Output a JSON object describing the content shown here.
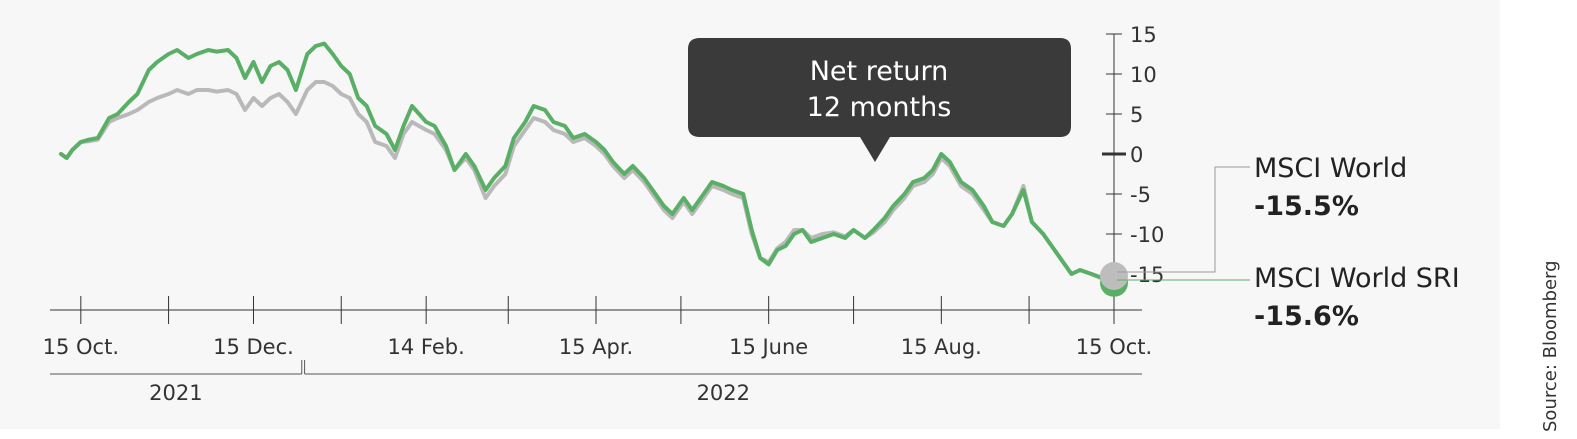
{
  "chart_data": {
    "type": "line",
    "tooltip": {
      "line1": "Net return",
      "line2": "12 months"
    },
    "source": "Source: Bloomberg",
    "ylim": [
      -15,
      15
    ],
    "y_ticks": [
      {
        "value": 15,
        "label": "15"
      },
      {
        "value": 10,
        "label": "10"
      },
      {
        "value": 5,
        "label": "5"
      },
      {
        "value": 0,
        "label": "0"
      },
      {
        "value": -5,
        "label": "-5"
      },
      {
        "value": -10,
        "label": "-10"
      },
      {
        "value": -15,
        "label": "-15"
      }
    ],
    "x_range": [
      "2021-10-08",
      "2022-10-15"
    ],
    "x_ticks": [
      "2021-10-15",
      "2021-11-15",
      "2021-12-15",
      "2022-01-15",
      "2022-02-14",
      "2022-03-15",
      "2022-04-15",
      "2022-05-15",
      "2022-06-15",
      "2022-07-15",
      "2022-08-15",
      "2022-09-15",
      "2022-10-15"
    ],
    "x_labels": [
      {
        "date": "2021-10-15",
        "label": "15 Oct."
      },
      {
        "date": "2021-12-15",
        "label": "15 Dec."
      },
      {
        "date": "2022-02-14",
        "label": "14 Feb."
      },
      {
        "date": "2022-04-15",
        "label": "15 Apr."
      },
      {
        "date": "2022-06-15",
        "label": "15 June"
      },
      {
        "date": "2022-08-15",
        "label": "15 Aug."
      },
      {
        "date": "2022-10-15",
        "label": "15 Oct."
      }
    ],
    "years": [
      {
        "label": "2021",
        "from": "2021-10-08",
        "to": "2021-12-31"
      },
      {
        "label": "2022",
        "from": "2022-01-01",
        "to": "2022-10-15"
      }
    ],
    "series": [
      {
        "name": "MSCI World",
        "value_label": "-15.5%",
        "color": "#5aaf66",
        "points": [
          [
            "2021-10-08",
            0.0
          ],
          [
            "2021-10-10",
            -0.5
          ],
          [
            "2021-10-12",
            0.5
          ],
          [
            "2021-10-15",
            1.5
          ],
          [
            "2021-10-18",
            1.8
          ],
          [
            "2021-10-21",
            2.0
          ],
          [
            "2021-10-25",
            4.5
          ],
          [
            "2021-10-28",
            5.0
          ],
          [
            "2021-11-01",
            6.5
          ],
          [
            "2021-11-04",
            7.5
          ],
          [
            "2021-11-08",
            10.5
          ],
          [
            "2021-11-11",
            11.5
          ],
          [
            "2021-11-15",
            12.5
          ],
          [
            "2021-11-18",
            13.0
          ],
          [
            "2021-11-22",
            12.0
          ],
          [
            "2021-11-25",
            12.5
          ],
          [
            "2021-11-29",
            13.0
          ],
          [
            "2021-12-02",
            12.8
          ],
          [
            "2021-12-06",
            13.0
          ],
          [
            "2021-12-09",
            12.0
          ],
          [
            "2021-12-12",
            9.5
          ],
          [
            "2021-12-15",
            11.5
          ],
          [
            "2021-12-18",
            9.0
          ],
          [
            "2021-12-21",
            11.0
          ],
          [
            "2021-12-24",
            11.5
          ],
          [
            "2021-12-27",
            10.5
          ],
          [
            "2021-12-30",
            8.0
          ],
          [
            "2022-01-03",
            12.5
          ],
          [
            "2022-01-06",
            13.5
          ],
          [
            "2022-01-09",
            13.8
          ],
          [
            "2022-01-12",
            12.5
          ],
          [
            "2022-01-15",
            11.0
          ],
          [
            "2022-01-18",
            10.0
          ],
          [
            "2022-01-21",
            7.0
          ],
          [
            "2022-01-24",
            6.0
          ],
          [
            "2022-01-27",
            3.5
          ],
          [
            "2022-01-31",
            2.5
          ],
          [
            "2022-02-03",
            0.5
          ],
          [
            "2022-02-06",
            3.5
          ],
          [
            "2022-02-09",
            6.0
          ],
          [
            "2022-02-14",
            4.0
          ],
          [
            "2022-02-17",
            3.5
          ],
          [
            "2022-02-21",
            1.0
          ],
          [
            "2022-02-24",
            -2.0
          ],
          [
            "2022-02-28",
            0.0
          ],
          [
            "2022-03-03",
            -1.5
          ],
          [
            "2022-03-07",
            -4.5
          ],
          [
            "2022-03-10",
            -3.0
          ],
          [
            "2022-03-14",
            -1.5
          ],
          [
            "2022-03-17",
            2.0
          ],
          [
            "2022-03-21",
            4.0
          ],
          [
            "2022-03-24",
            6.0
          ],
          [
            "2022-03-28",
            5.5
          ],
          [
            "2022-03-31",
            4.0
          ],
          [
            "2022-04-04",
            3.5
          ],
          [
            "2022-04-07",
            2.0
          ],
          [
            "2022-04-11",
            2.5
          ],
          [
            "2022-04-15",
            1.5
          ],
          [
            "2022-04-18",
            0.5
          ],
          [
            "2022-04-21",
            -1.0
          ],
          [
            "2022-04-25",
            -2.5
          ],
          [
            "2022-04-28",
            -1.5
          ],
          [
            "2022-05-02",
            -3.0
          ],
          [
            "2022-05-05",
            -4.5
          ],
          [
            "2022-05-09",
            -6.5
          ],
          [
            "2022-05-12",
            -7.5
          ],
          [
            "2022-05-16",
            -5.5
          ],
          [
            "2022-05-19",
            -7.0
          ],
          [
            "2022-05-23",
            -5.0
          ],
          [
            "2022-05-26",
            -3.5
          ],
          [
            "2022-05-30",
            -4.0
          ],
          [
            "2022-06-02",
            -4.5
          ],
          [
            "2022-06-06",
            -5.0
          ],
          [
            "2022-06-09",
            -9.5
          ],
          [
            "2022-06-12",
            -13.0
          ],
          [
            "2022-06-15",
            -13.8
          ],
          [
            "2022-06-18",
            -12.0
          ],
          [
            "2022-06-21",
            -11.5
          ],
          [
            "2022-06-24",
            -10.0
          ],
          [
            "2022-06-27",
            -9.5
          ],
          [
            "2022-06-30",
            -11.0
          ],
          [
            "2022-07-04",
            -10.5
          ],
          [
            "2022-07-08",
            -10.0
          ],
          [
            "2022-07-12",
            -10.5
          ],
          [
            "2022-07-15",
            -9.5
          ],
          [
            "2022-07-19",
            -10.5
          ],
          [
            "2022-07-22",
            -9.5
          ],
          [
            "2022-07-26",
            -8.0
          ],
          [
            "2022-07-29",
            -6.5
          ],
          [
            "2022-08-02",
            -5.0
          ],
          [
            "2022-08-05",
            -3.5
          ],
          [
            "2022-08-09",
            -3.0
          ],
          [
            "2022-08-12",
            -2.0
          ],
          [
            "2022-08-15",
            0.0
          ],
          [
            "2022-08-18",
            -1.0
          ],
          [
            "2022-08-22",
            -3.5
          ],
          [
            "2022-08-26",
            -4.5
          ],
          [
            "2022-08-30",
            -6.5
          ],
          [
            "2022-09-02",
            -8.5
          ],
          [
            "2022-09-06",
            -9.0
          ],
          [
            "2022-09-09",
            -7.5
          ],
          [
            "2022-09-13",
            -4.5
          ],
          [
            "2022-09-16",
            -8.5
          ],
          [
            "2022-09-20",
            -10.0
          ],
          [
            "2022-09-23",
            -11.5
          ],
          [
            "2022-09-27",
            -13.5
          ],
          [
            "2022-09-30",
            -15.0
          ],
          [
            "2022-10-03",
            -14.5
          ],
          [
            "2022-10-07",
            -15.0
          ],
          [
            "2022-10-11",
            -15.5
          ],
          [
            "2022-10-15",
            -15.5
          ]
        ]
      },
      {
        "name": "MSCI World SRI",
        "value_label": "-15.6%",
        "color": "#b9b9b9",
        "points": [
          [
            "2021-10-08",
            0.0
          ],
          [
            "2021-10-10",
            -0.5
          ],
          [
            "2021-10-12",
            0.5
          ],
          [
            "2021-10-15",
            1.5
          ],
          [
            "2021-10-18",
            1.6
          ],
          [
            "2021-10-21",
            1.8
          ],
          [
            "2021-10-25",
            4.0
          ],
          [
            "2021-10-28",
            4.5
          ],
          [
            "2021-11-01",
            5.0
          ],
          [
            "2021-11-04",
            5.5
          ],
          [
            "2021-11-08",
            6.5
          ],
          [
            "2021-11-11",
            7.0
          ],
          [
            "2021-11-15",
            7.5
          ],
          [
            "2021-11-18",
            8.0
          ],
          [
            "2021-11-22",
            7.5
          ],
          [
            "2021-11-25",
            8.0
          ],
          [
            "2021-11-29",
            8.0
          ],
          [
            "2021-12-02",
            7.8
          ],
          [
            "2021-12-06",
            8.0
          ],
          [
            "2021-12-09",
            7.5
          ],
          [
            "2021-12-12",
            5.5
          ],
          [
            "2021-12-15",
            7.0
          ],
          [
            "2021-12-18",
            6.0
          ],
          [
            "2021-12-21",
            7.0
          ],
          [
            "2021-12-24",
            7.5
          ],
          [
            "2021-12-27",
            6.5
          ],
          [
            "2021-12-30",
            5.0
          ],
          [
            "2022-01-03",
            8.0
          ],
          [
            "2022-01-06",
            9.0
          ],
          [
            "2022-01-09",
            9.0
          ],
          [
            "2022-01-12",
            8.5
          ],
          [
            "2022-01-15",
            7.5
          ],
          [
            "2022-01-18",
            7.0
          ],
          [
            "2022-01-21",
            5.0
          ],
          [
            "2022-01-24",
            4.0
          ],
          [
            "2022-01-27",
            1.5
          ],
          [
            "2022-01-31",
            1.0
          ],
          [
            "2022-02-03",
            -0.5
          ],
          [
            "2022-02-06",
            2.5
          ],
          [
            "2022-02-09",
            4.0
          ],
          [
            "2022-02-14",
            3.0
          ],
          [
            "2022-02-17",
            2.5
          ],
          [
            "2022-02-21",
            0.5
          ],
          [
            "2022-02-24",
            -2.0
          ],
          [
            "2022-02-28",
            -0.5
          ],
          [
            "2022-03-03",
            -2.0
          ],
          [
            "2022-03-07",
            -5.5
          ],
          [
            "2022-03-10",
            -4.0
          ],
          [
            "2022-03-14",
            -2.5
          ],
          [
            "2022-03-17",
            1.0
          ],
          [
            "2022-03-21",
            3.0
          ],
          [
            "2022-03-24",
            4.5
          ],
          [
            "2022-03-28",
            4.0
          ],
          [
            "2022-03-31",
            3.0
          ],
          [
            "2022-04-04",
            2.5
          ],
          [
            "2022-04-07",
            1.5
          ],
          [
            "2022-04-11",
            2.0
          ],
          [
            "2022-04-15",
            1.0
          ],
          [
            "2022-04-18",
            0.0
          ],
          [
            "2022-04-21",
            -1.5
          ],
          [
            "2022-04-25",
            -3.0
          ],
          [
            "2022-04-28",
            -2.0
          ],
          [
            "2022-05-02",
            -3.5
          ],
          [
            "2022-05-05",
            -5.0
          ],
          [
            "2022-05-09",
            -7.0
          ],
          [
            "2022-05-12",
            -8.0
          ],
          [
            "2022-05-16",
            -6.0
          ],
          [
            "2022-05-19",
            -7.5
          ],
          [
            "2022-05-23",
            -5.5
          ],
          [
            "2022-05-26",
            -4.0
          ],
          [
            "2022-05-30",
            -4.5
          ],
          [
            "2022-06-02",
            -5.0
          ],
          [
            "2022-06-06",
            -5.5
          ],
          [
            "2022-06-09",
            -10.0
          ],
          [
            "2022-06-12",
            -13.0
          ],
          [
            "2022-06-15",
            -13.5
          ],
          [
            "2022-06-18",
            -11.8
          ],
          [
            "2022-06-21",
            -11.0
          ],
          [
            "2022-06-24",
            -9.5
          ],
          [
            "2022-06-27",
            -9.5
          ],
          [
            "2022-06-30",
            -10.5
          ],
          [
            "2022-07-04",
            -10.0
          ],
          [
            "2022-07-08",
            -9.8
          ],
          [
            "2022-07-12",
            -10.3
          ],
          [
            "2022-07-15",
            -9.5
          ],
          [
            "2022-07-19",
            -10.5
          ],
          [
            "2022-07-22",
            -9.8
          ],
          [
            "2022-07-26",
            -8.5
          ],
          [
            "2022-07-29",
            -7.0
          ],
          [
            "2022-08-02",
            -5.5
          ],
          [
            "2022-08-05",
            -4.0
          ],
          [
            "2022-08-09",
            -3.5
          ],
          [
            "2022-08-12",
            -2.5
          ],
          [
            "2022-08-15",
            -0.5
          ],
          [
            "2022-08-18",
            -1.5
          ],
          [
            "2022-08-22",
            -4.0
          ],
          [
            "2022-08-26",
            -5.0
          ],
          [
            "2022-08-30",
            -7.0
          ],
          [
            "2022-09-02",
            -8.5
          ],
          [
            "2022-09-06",
            -9.0
          ],
          [
            "2022-09-09",
            -7.5
          ],
          [
            "2022-09-13",
            -4.0
          ],
          [
            "2022-09-16",
            -8.5
          ],
          [
            "2022-09-20",
            -10.0
          ],
          [
            "2022-09-23",
            -11.5
          ],
          [
            "2022-09-27",
            -13.5
          ],
          [
            "2022-09-30",
            -15.0
          ],
          [
            "2022-10-03",
            -14.5
          ],
          [
            "2022-10-07",
            -15.0
          ],
          [
            "2022-10-11",
            -15.6
          ],
          [
            "2022-10-15",
            -15.6
          ]
        ]
      }
    ]
  }
}
